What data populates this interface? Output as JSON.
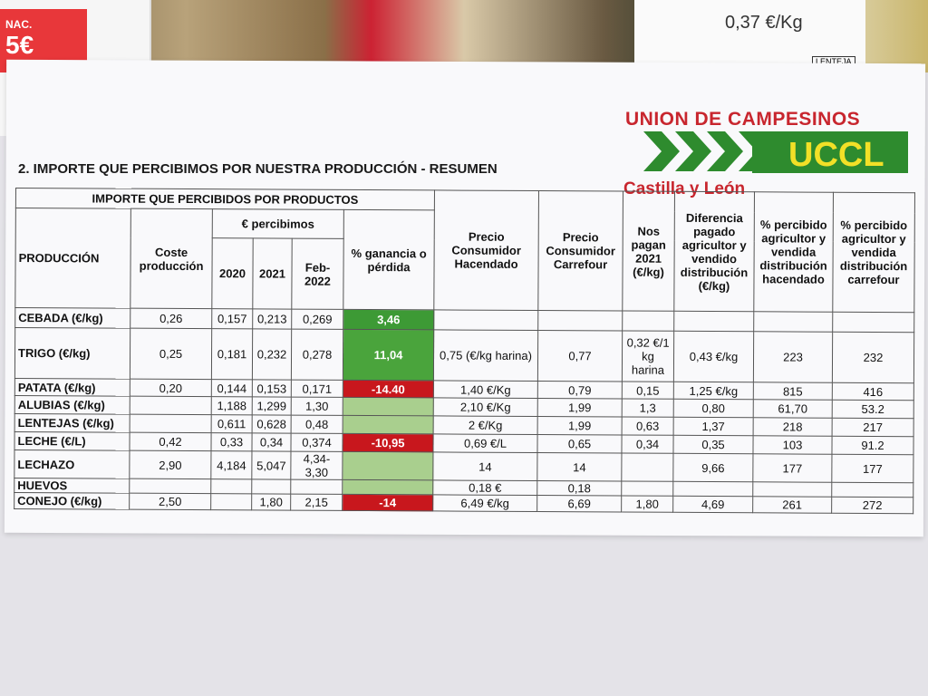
{
  "background": {
    "price_tag_prefix": "NAC.",
    "price_tag": "5€",
    "shelf_label": "0,37 €/Kg",
    "bag_label": "LENTEJA"
  },
  "logo": {
    "line1": "UNION DE CAMPESINOS",
    "acronym": "UCCL",
    "region": "Castilla y León"
  },
  "title": "2. IMPORTE QUE PERCIBIMOS POR NUESTRA PRODUCCIÓN - RESUMEN",
  "table": {
    "group_header": "IMPORTE QUE PERCIBIDOS POR PRODUCTOS",
    "subgroup_header": "€ percibimos",
    "columns": [
      "PRODUCCIÓN",
      "Coste producción",
      "2020",
      "2021",
      "Feb-2022",
      "% ganancia o pérdida",
      "Precio Consumidor Hacendado",
      "Precio Consumidor Carrefour",
      "Nos pagan 2021 (€/kg)",
      "Diferencia pagado agricultor y vendido distribución (€/kg)",
      "% percibido agricultor y vendida distribución hacendado",
      "% percibido agricultor y vendida distribución carrefour"
    ],
    "rows": [
      [
        "CEBADA (€/kg)",
        "0,26",
        "0,157",
        "0,213",
        "0,269",
        "3,46",
        null,
        null,
        null,
        null,
        null,
        null
      ],
      [
        "TRIGO (€/kg)",
        "0,25",
        "0,181",
        "0,232",
        "0,278",
        "11,04",
        "0,75 (€/kg harina)",
        "0,77",
        "0,32 €/1 kg harina",
        "0,43 €/kg",
        "223",
        "232"
      ],
      [
        "PATATA (€/kg)",
        "0,20",
        "0,144",
        "0,153",
        "0,171",
        "-14.40",
        "1,40 €/Kg",
        "0,79",
        "0,15",
        "1,25 €/kg",
        "815",
        "416"
      ],
      [
        "ALUBIAS (€/kg)",
        null,
        "1,188",
        "1,299",
        "1,30",
        null,
        "2,10 €/Kg",
        "1,99",
        "1,3",
        "0,80",
        "61,70",
        "53.2"
      ],
      [
        "LENTEJAS (€/kg)",
        null,
        "0,611",
        "0,628",
        "0,48",
        null,
        "2 €/Kg",
        "1,99",
        "0,63",
        "1,37",
        "218",
        "217"
      ],
      [
        "LECHE (€/L)",
        "0,42",
        "0,33",
        "0,34",
        "0,374",
        "-10,95",
        "0,69 €/L",
        "0,65",
        "0,34",
        "0,35",
        "103",
        "91.2"
      ],
      [
        "LECHAZO",
        "2,90",
        "4,184",
        "5,047",
        "4,34-3,30",
        null,
        "14",
        "14",
        null,
        "9,66",
        "177",
        "177"
      ],
      [
        "HUEVOS",
        null,
        null,
        null,
        null,
        null,
        "0,18 €",
        "0,18",
        null,
        null,
        null,
        null
      ],
      [
        "CONEJO (€/kg)",
        "2,50",
        null,
        "1,80",
        "2,15",
        "-14",
        "6,49 €/kg",
        "6,69",
        "1,80",
        "4,69",
        "261",
        "272"
      ]
    ],
    "highlight": [
      "#3d9a35",
      "#4aa43c",
      "#c8171d",
      "#a9cf8e",
      "#a9cf8e",
      "#c8171d",
      "#a9cf8e",
      "#a9cf8e",
      "#c8171d"
    ]
  }
}
